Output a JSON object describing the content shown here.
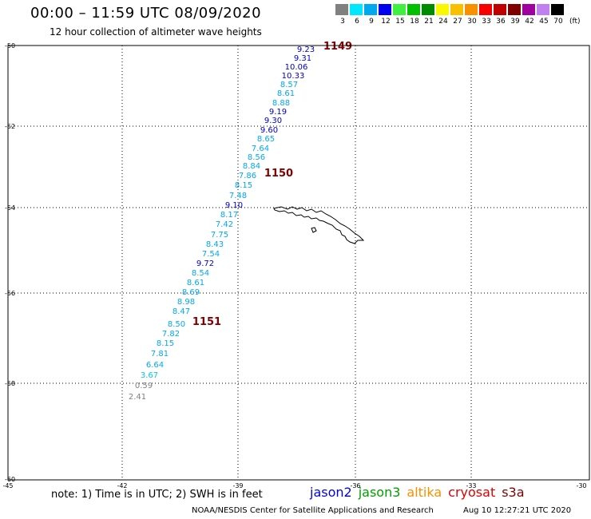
{
  "title": "00:00 – 11:59 UTC 08/09/2020",
  "subtitle": "12 hour collection of altimeter wave heights",
  "scale": {
    "unit": "(ft)",
    "bins": [
      {
        "label": "3",
        "color": "#808080"
      },
      {
        "label": "6",
        "color": "#00e8ff"
      },
      {
        "label": "9",
        "color": "#00a8f0"
      },
      {
        "label": "12",
        "color": "#0000f0"
      },
      {
        "label": "15",
        "color": "#40f040"
      },
      {
        "label": "18",
        "color": "#00c000"
      },
      {
        "label": "21",
        "color": "#008c00"
      },
      {
        "label": "24",
        "color": "#f8f800"
      },
      {
        "label": "27",
        "color": "#f8c000"
      },
      {
        "label": "30",
        "color": "#f89000"
      },
      {
        "label": "33",
        "color": "#f80000"
      },
      {
        "label": "36",
        "color": "#c00000"
      },
      {
        "label": "39",
        "color": "#800000"
      },
      {
        "label": "42",
        "color": "#a000a0"
      },
      {
        "label": "45",
        "color": "#c080f0"
      },
      {
        "label": "70",
        "color": "#000000"
      }
    ]
  },
  "axes": {
    "lat_labels": [
      "-50",
      "-52",
      "-54",
      "-56",
      "-58",
      "-60"
    ],
    "lon_labels": [
      "-45",
      "-42",
      "-39",
      "-36",
      "-33",
      "-30"
    ]
  },
  "observations": [
    {
      "v": "9.23",
      "c": "#0000c8"
    },
    {
      "v": "9.31",
      "c": "#0000c8"
    },
    {
      "v": "10.06",
      "c": "#0000c8"
    },
    {
      "v": "10.33",
      "c": "#0000c8"
    },
    {
      "v": "8.57",
      "c": "#00a8f0"
    },
    {
      "v": "8.61",
      "c": "#00a8f0"
    },
    {
      "v": "8.88",
      "c": "#00a8f0"
    },
    {
      "v": "9.19",
      "c": "#0000c8"
    },
    {
      "v": "9.30",
      "c": "#0000c8"
    },
    {
      "v": "9.60",
      "c": "#0000c8"
    },
    {
      "v": "8.65",
      "c": "#00a8f0"
    },
    {
      "v": "7.64",
      "c": "#00a8f0"
    },
    {
      "v": "8.56",
      "c": "#00a8f0"
    },
    {
      "v": "8.84",
      "c": "#00a8f0"
    },
    {
      "v": "7.86",
      "c": "#00a8f0"
    },
    {
      "v": "8.15",
      "c": "#00a8f0"
    },
    {
      "v": "7.48",
      "c": "#00a8f0"
    },
    {
      "v": "9.10",
      "c": "#0000c8"
    },
    {
      "v": "8.17",
      "c": "#00a8f0"
    },
    {
      "v": "7.42",
      "c": "#00a8f0"
    },
    {
      "v": "7.75",
      "c": "#00a8f0"
    },
    {
      "v": "8.43",
      "c": "#00a8f0"
    },
    {
      "v": "7.54",
      "c": "#00a8f0"
    },
    {
      "v": "9.72",
      "c": "#0000c8"
    },
    {
      "v": "8.54",
      "c": "#00a8f0"
    },
    {
      "v": "8.61",
      "c": "#00a8f0"
    },
    {
      "v": "8.69",
      "c": "#00a8f0"
    },
    {
      "v": "8.98",
      "c": "#00a8f0"
    },
    {
      "v": "8.47",
      "c": "#00a8f0"
    },
    {
      "v": "8.50",
      "c": "#00a8f0"
    },
    {
      "v": "7.82",
      "c": "#00a8f0"
    },
    {
      "v": "8.15",
      "c": "#00a8f0"
    },
    {
      "v": "7.81",
      "c": "#00a8f0"
    },
    {
      "v": "6.64",
      "c": "#00a8f0"
    },
    {
      "v": "3.67",
      "c": "#00c8e8"
    },
    {
      "v": "0.59",
      "c": "#808080"
    },
    {
      "v": "2.41",
      "c": "#808080"
    }
  ],
  "pass_times": [
    "1149",
    "1150",
    "1151"
  ],
  "footer": {
    "note": "note:  1) Time is in UTC;  2) SWH is in feet",
    "credit": "NOAA/NESDIS Center for Satellite Applications and Research",
    "timestamp": "Aug 10 12:27:21 UTC 2020"
  },
  "satellites": [
    {
      "name": "jason2",
      "color": "#0000f0"
    },
    {
      "name": "jason3",
      "color": "#00a000"
    },
    {
      "name": "altika",
      "color": "#f89000"
    },
    {
      "name": "cryosat",
      "color": "#e00000"
    },
    {
      "name": "s3a",
      "color": "#800000"
    }
  ]
}
